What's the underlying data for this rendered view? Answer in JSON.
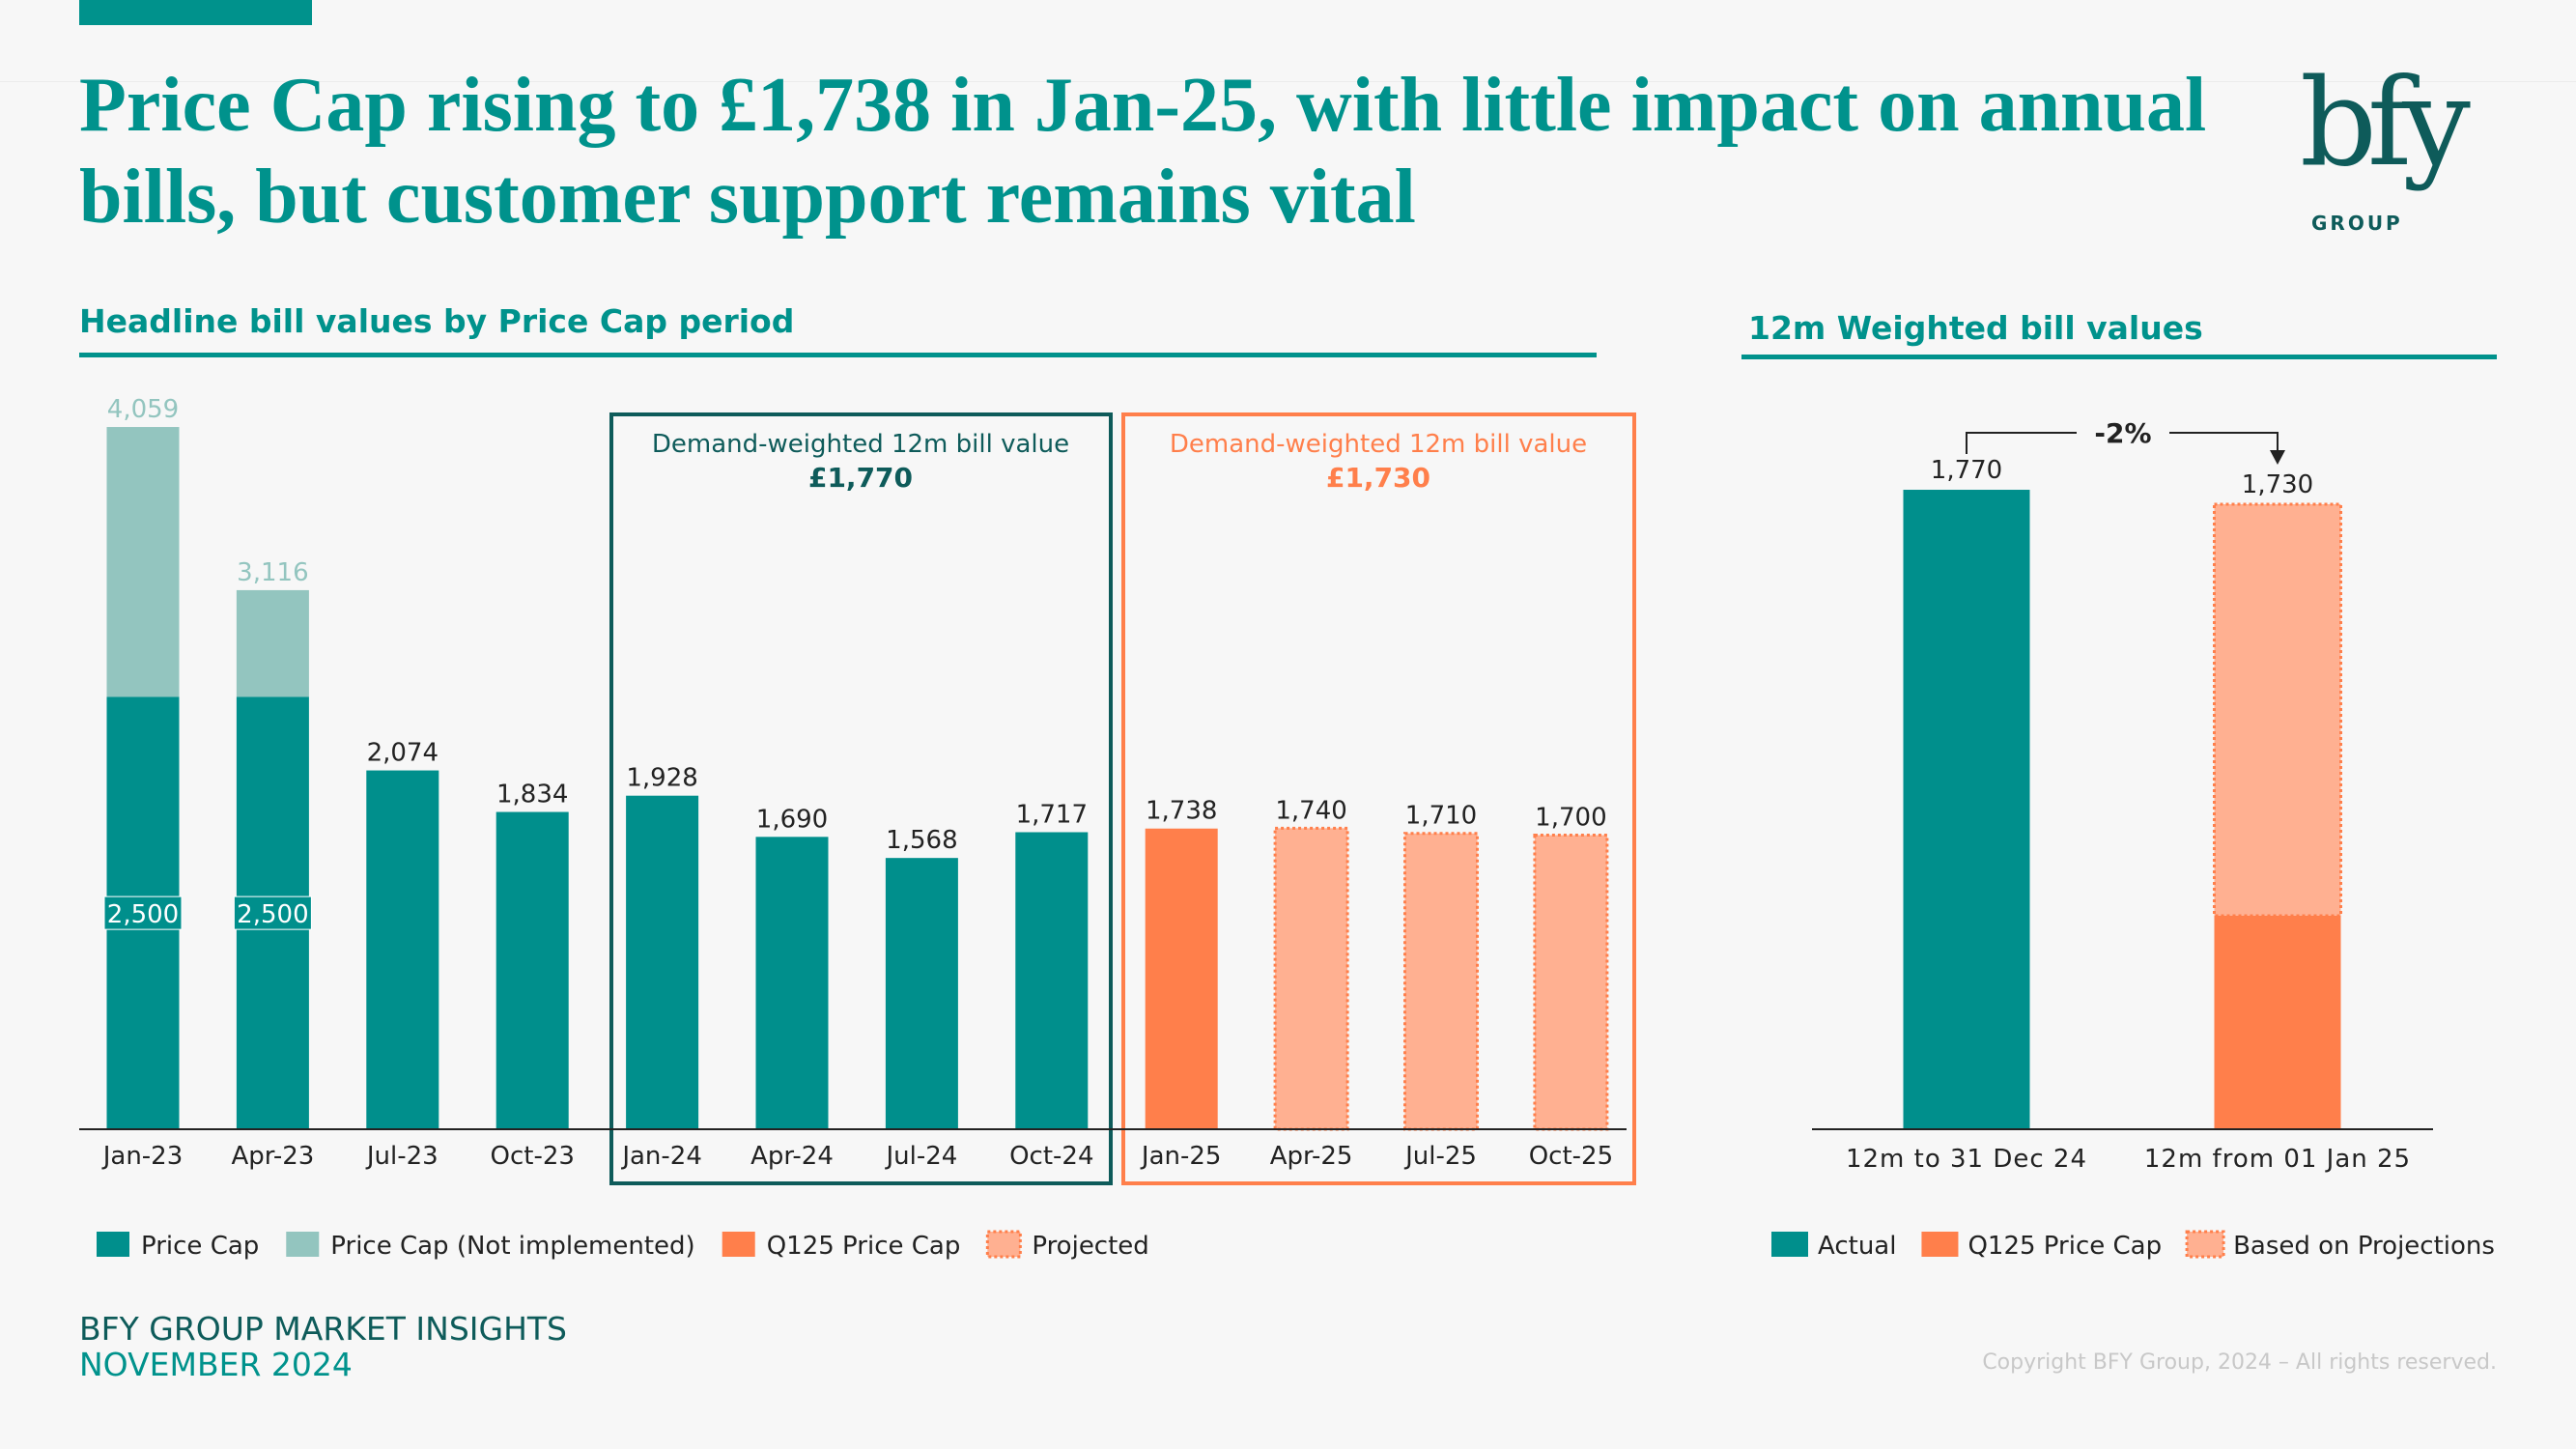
{
  "header": {
    "title": "Price Cap rising to £1,738 in Jan-25, with little impact on annual bills, but customer support remains vital",
    "logo_text": "bfy",
    "logo_subtext": "GROUP"
  },
  "colors": {
    "price_cap": "#008f8c",
    "not_implemented": "#93c5bf",
    "q125": "#ff7f4b",
    "projected": "#ffb091",
    "box_teal": "#0e5b5a",
    "box_orange": "#ff7f4b"
  },
  "chart_data": [
    {
      "type": "bar",
      "title": "Headline bill values by Price Cap period",
      "categories": [
        "Jan-23",
        "Apr-23",
        "Jul-23",
        "Oct-23",
        "Jan-24",
        "Apr-24",
        "Jul-24",
        "Oct-24",
        "Jan-25",
        "Apr-25",
        "Jul-25",
        "Oct-25"
      ],
      "series": [
        {
          "name": "Price Cap",
          "values": [
            2500,
            2500,
            2074,
            1834,
            1928,
            1690,
            1568,
            1717,
            null,
            null,
            null,
            null
          ]
        },
        {
          "name": "Price Cap (Not implemented)",
          "values": [
            1559,
            616,
            null,
            null,
            null,
            null,
            null,
            null,
            null,
            null,
            null,
            null
          ]
        },
        {
          "name": "Q125 Price Cap",
          "values": [
            null,
            null,
            null,
            null,
            null,
            null,
            null,
            null,
            1738,
            null,
            null,
            null
          ]
        },
        {
          "name": "Projected",
          "values": [
            null,
            null,
            null,
            null,
            null,
            null,
            null,
            null,
            null,
            1740,
            1710,
            1700
          ]
        }
      ],
      "data_labels": [
        "4,059",
        "3,116",
        "2,074",
        "1,834",
        "1,928",
        "1,690",
        "1,568",
        "1,717",
        "1,738",
        "1,740",
        "1,710",
        "1,700"
      ],
      "inner_labels": [
        "2,500",
        "2,500"
      ],
      "annotations": [
        {
          "text": "Demand-weighted 12m bill value",
          "value": "£1,770",
          "range": [
            "Jan-24",
            "Oct-24"
          ]
        },
        {
          "text": "Demand-weighted 12m bill value",
          "value": "£1,730",
          "range": [
            "Jan-25",
            "Oct-25"
          ]
        }
      ],
      "legend": [
        "Price Cap",
        "Price Cap (Not implemented)",
        "Q125 Price Cap",
        "Projected"
      ],
      "legend_position": "bottom-left",
      "grid": false,
      "ylim": [
        0,
        4200
      ]
    },
    {
      "type": "bar",
      "title": "12m Weighted bill values",
      "categories": [
        "12m to 31 Dec 24",
        "12m from 01 Jan 25"
      ],
      "series": [
        {
          "name": "Actual",
          "values": [
            1770,
            null
          ]
        },
        {
          "name": "Q125 Price Cap",
          "values": [
            null,
            591
          ]
        },
        {
          "name": "Based on Projections",
          "values": [
            null,
            1139
          ]
        }
      ],
      "data_labels": [
        "1,770",
        "1,730"
      ],
      "change_label": "-2%",
      "legend": [
        "Actual",
        "Q125 Price Cap",
        "Based on Projections"
      ],
      "legend_position": "bottom",
      "grid": false,
      "ylim": [
        0,
        1900
      ]
    }
  ],
  "footer": {
    "line1": "BFY GROUP MARKET INSIGHTS",
    "line2": "NOVEMBER 2024",
    "copyright": "Copyright BFY Group, 2024 – All rights reserved."
  }
}
